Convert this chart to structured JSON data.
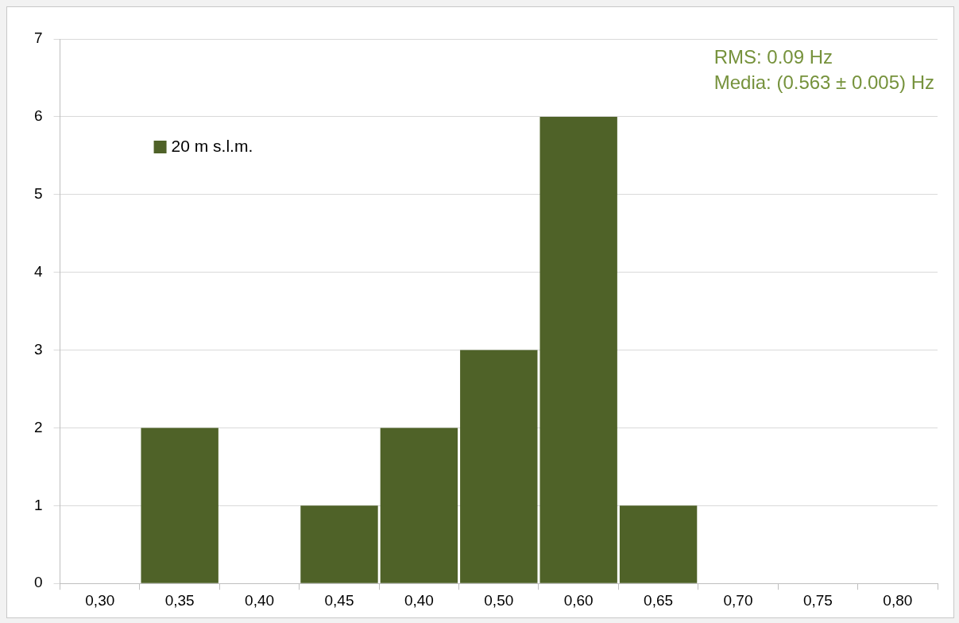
{
  "chart_data": {
    "type": "bar",
    "categories": [
      "0,30",
      "0,35",
      "0,40",
      "0,45",
      "0,40",
      "0,50",
      "0,60",
      "0,65",
      "0,70",
      "0,75",
      "0,80"
    ],
    "series": [
      {
        "name": "20 m s.l.m.",
        "color": "#4f6228",
        "values": [
          0,
          2,
          0,
          1,
          2,
          3,
          6,
          1,
          0,
          0,
          0
        ]
      }
    ],
    "ylim": [
      0,
      7
    ],
    "yticks": [
      0,
      1,
      2,
      3,
      4,
      5,
      6,
      7
    ],
    "grid": "y",
    "legend": "top left",
    "annotations": [
      "RMS: 0.09 Hz",
      "Media: (0.563 ± 0.005) Hz"
    ]
  }
}
